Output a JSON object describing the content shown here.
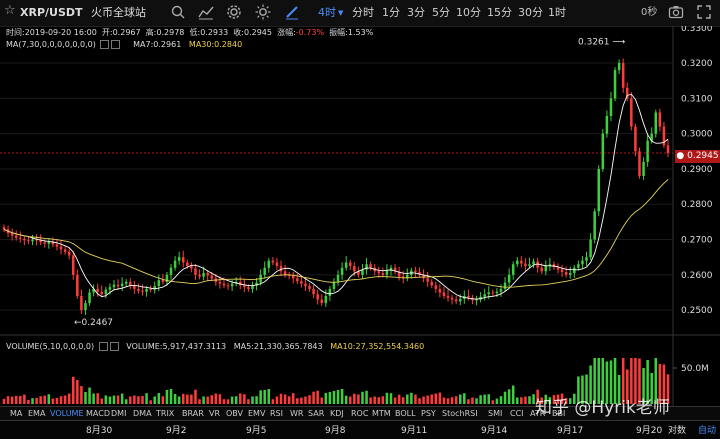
{
  "toolbar": {
    "symbol": "XRP/USDT",
    "exchange": "火币全球站",
    "timeframes": [
      "4时",
      "分时",
      "1分",
      "3分",
      "5分",
      "10分",
      "15分",
      "30分",
      "1时"
    ],
    "active_timeframe": "4时",
    "countdown": "0秒"
  },
  "info": {
    "time_label": "时间:",
    "time": "2019-09-20 16:00",
    "open_label": "开:",
    "open": "0.2967",
    "high_label": "高:",
    "high": "0.2978",
    "low_label": "低:",
    "low": "0.2933",
    "close_label": "收:",
    "close": "0.2945",
    "change_label": "涨幅:",
    "change": "-0.73%",
    "amp_label": "振幅:",
    "amp": "1.53%",
    "ma_label": "MA(7,30,0,0,0,0,0,0,0)",
    "ma7": "MA7:0.2961",
    "ma30": "MA30:0.2840"
  },
  "volume_info": {
    "label": "VOLUME(5,10,0,0,0,0)",
    "volume": "VOLUME:5,917,437.3113",
    "ma5": "MA5:21,330,365.7843",
    "ma10": "MA10:27,352,554.3460"
  },
  "indicators": [
    "MA",
    "EMA",
    "VOLUME",
    "MACD",
    "DMI",
    "DMA",
    "TRIX",
    "BRAR",
    "VR",
    "OBV",
    "EMV",
    "RSI",
    "WR",
    "SAR",
    "KDJ",
    "ROC",
    "MTM",
    "BOLL",
    "PSY",
    "StochRSI",
    "SMI",
    "CCI",
    "ATR",
    "BBI"
  ],
  "active_indicator": "VOLUME",
  "x_ticks": [
    "8月30",
    "9月2",
    "9月5",
    "9月8",
    "9月11",
    "9月14",
    "9月17",
    "9月20"
  ],
  "log_label": "对数",
  "auto_label": "自动",
  "current_price": "0.2945",
  "colors": {
    "up": "#ff3b3b",
    "down": "#3ecf3e",
    "accent": "#4a8df8",
    "ma7": "#ffffff",
    "ma30": "#e6d35a"
  },
  "chart_data": {
    "type": "candlestick",
    "y_ticks": [
      0.25,
      0.26,
      0.27,
      0.28,
      0.29,
      0.3,
      0.31,
      0.32
    ],
    "y_top_label": "0.3300",
    "ylim": [
      0.2455,
      0.3305
    ],
    "max_marker": "0.3261",
    "min_marker": "0.2467",
    "volume_tick": "50.0M",
    "candles": [
      0.2729,
      0.2718,
      0.2711,
      0.2705,
      0.2702,
      0.2698,
      0.2695,
      0.27,
      0.2697,
      0.2692,
      0.2688,
      0.2693,
      0.2686,
      0.268,
      0.2672,
      0.2665,
      0.2655,
      0.26,
      0.254,
      0.25,
      0.252,
      0.255,
      0.256,
      0.2552,
      0.2545,
      0.2558,
      0.2565,
      0.2572,
      0.2568,
      0.2575,
      0.258,
      0.257,
      0.256,
      0.2555,
      0.2552,
      0.256,
      0.2558,
      0.2568,
      0.2585,
      0.258,
      0.26,
      0.262,
      0.264,
      0.265,
      0.2635,
      0.2625,
      0.2618,
      0.26,
      0.2595,
      0.2605,
      0.2598,
      0.259,
      0.258,
      0.2575,
      0.257,
      0.2568,
      0.2575,
      0.258,
      0.257,
      0.2565,
      0.256,
      0.257,
      0.2578,
      0.26,
      0.262,
      0.264,
      0.2635,
      0.2625,
      0.261,
      0.26,
      0.2598,
      0.259,
      0.2582,
      0.2575,
      0.2568,
      0.256,
      0.2545,
      0.253,
      0.252,
      0.254,
      0.256,
      0.258,
      0.26,
      0.262,
      0.2635,
      0.2625,
      0.261,
      0.26,
      0.2615,
      0.263,
      0.262,
      0.261,
      0.2605,
      0.26,
      0.2612,
      0.262,
      0.261,
      0.2595,
      0.259,
      0.26,
      0.2612,
      0.2608,
      0.26,
      0.259,
      0.258,
      0.257,
      0.256,
      0.255,
      0.254,
      0.2535,
      0.253,
      0.2525,
      0.2532,
      0.254,
      0.2535,
      0.2528,
      0.253,
      0.2538,
      0.2545,
      0.255,
      0.2548,
      0.2552,
      0.256,
      0.2578,
      0.26,
      0.263,
      0.264,
      0.2632,
      0.2625,
      0.263,
      0.2638,
      0.262,
      0.261,
      0.2625,
      0.263,
      0.2622,
      0.2615,
      0.2608,
      0.26,
      0.2605,
      0.262,
      0.263,
      0.264,
      0.265,
      0.27,
      0.278,
      0.29,
      0.3,
      0.305,
      0.31,
      0.318,
      0.32,
      0.313,
      0.31,
      0.302,
      0.295,
      0.288,
      0.292,
      0.298,
      0.3,
      0.306,
      0.302,
      0.2967,
      0.2945
    ]
  }
}
